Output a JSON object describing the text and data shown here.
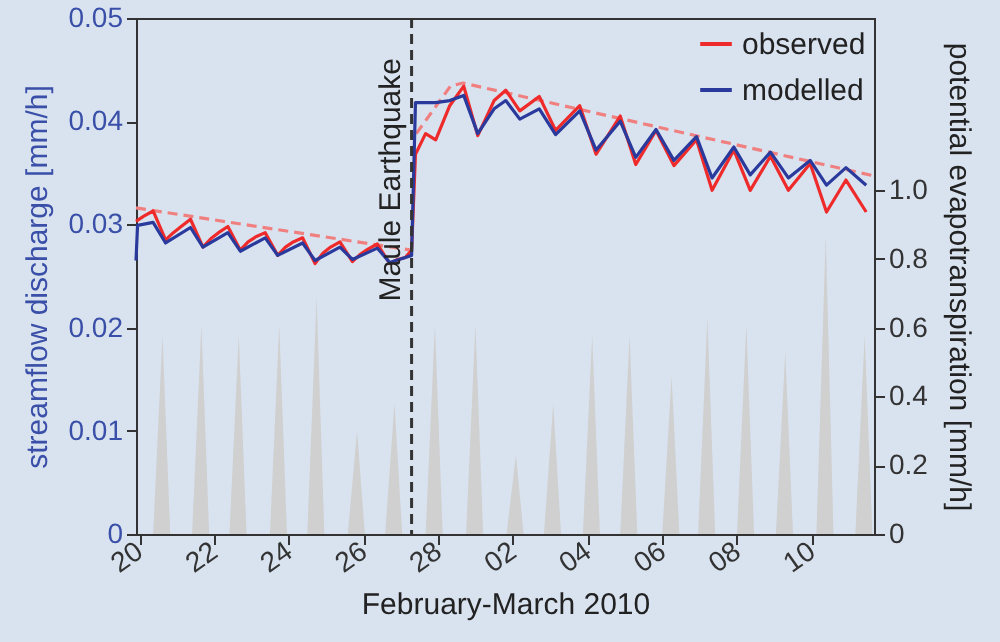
{
  "chart_data": {
    "type": "line",
    "xlabel": "February-March 2010",
    "ylabel": "streamflow discharge [mm/h]",
    "y2label": "potential evapotranspiration [mm/h]",
    "xlim": [
      "2010-02-19T22:00",
      "2010-03-11T16:00"
    ],
    "xticks": [
      {
        "value": "2010-02-20T00:00",
        "label": "20"
      },
      {
        "value": "2010-02-22T00:00",
        "label": "22"
      },
      {
        "value": "2010-02-24T00:00",
        "label": "24"
      },
      {
        "value": "2010-02-26T00:00",
        "label": "26"
      },
      {
        "value": "2010-02-28T00:00",
        "label": "28"
      },
      {
        "value": "2010-03-02T00:00",
        "label": "02"
      },
      {
        "value": "2010-03-04T00:00",
        "label": "04"
      },
      {
        "value": "2010-03-06T00:00",
        "label": "06"
      },
      {
        "value": "2010-03-08T00:00",
        "label": "08"
      },
      {
        "value": "2010-03-10T00:00",
        "label": "10"
      }
    ],
    "ylim": [
      0,
      0.05
    ],
    "yticks": [
      0,
      0.01,
      0.02,
      0.03,
      0.04,
      0.05
    ],
    "y2lim": [
      0,
      1.5
    ],
    "y2ticks": [
      0,
      0.2,
      0.4,
      0.6,
      0.8,
      {
        "value": 1,
        "label": "1.0"
      }
    ],
    "grid": false,
    "legend": "top right",
    "marker": "none",
    "ref_lines": [
      {
        "axis": "x",
        "value": "2010-02-27T07:00",
        "label": "Maule Earthquake",
        "color": "#333333",
        "line_style": "dashed"
      }
    ],
    "series": [
      {
        "type": "area",
        "axis": "y2",
        "color": "#d0d0d0",
        "x": [
          "2010-02-19T22:00",
          "2010-02-20T09:00",
          "2010-02-20T15:00",
          "2010-02-20T20:00",
          "2010-02-21T10:00",
          "2010-02-21T16:00",
          "2010-02-21T21:00",
          "2010-02-22T10:00",
          "2010-02-22T16:00",
          "2010-02-22T21:00",
          "2010-02-23T12:00",
          "2010-02-23T18:00",
          "2010-02-23T23:00",
          "2010-02-24T12:00",
          "2010-02-24T18:00",
          "2010-02-24T23:00",
          "2010-02-25T14:00",
          "2010-02-25T20:00",
          "2010-02-26T01:00",
          "2010-02-26T14:00",
          "2010-02-26T20:00",
          "2010-02-27T01:00",
          "2010-02-27T16:00",
          "2010-02-27T22:00",
          "2010-02-28T03:00",
          "2010-02-28T18:00",
          "2010-03-01T00:00",
          "2010-03-01T05:00",
          "2010-03-01T20:00",
          "2010-03-02T02:00",
          "2010-03-02T07:00",
          "2010-03-02T20:00",
          "2010-03-03T02:00",
          "2010-03-03T07:00",
          "2010-03-03T21:00",
          "2010-03-04T03:00",
          "2010-03-04T08:00",
          "2010-03-04T21:00",
          "2010-03-05T03:00",
          "2010-03-05T08:00",
          "2010-03-06T00:00",
          "2010-03-06T06:00",
          "2010-03-06T11:00",
          "2010-03-06T23:00",
          "2010-03-07T05:00",
          "2010-03-07T10:00",
          "2010-03-08T00:00",
          "2010-03-08T06:00",
          "2010-03-08T11:00",
          "2010-03-09T01:00",
          "2010-03-09T07:00",
          "2010-03-09T12:00",
          "2010-03-10T03:00",
          "2010-03-10T09:00",
          "2010-03-10T14:00",
          "2010-03-11T04:00",
          "2010-03-11T10:00",
          "2010-03-11T15:00"
        ],
        "values": [
          0,
          0,
          0.58,
          0,
          0,
          0.61,
          0,
          0,
          0.58,
          0,
          0,
          0.61,
          0,
          0,
          0.69,
          0,
          0,
          0.3,
          0,
          0,
          0.38,
          0,
          0,
          0.61,
          0,
          0,
          0.61,
          0,
          0,
          0.23,
          0,
          0,
          0.38,
          0,
          0,
          0.58,
          0,
          0,
          0.58,
          0,
          0,
          0.46,
          0,
          0,
          0.63,
          0,
          0,
          0.61,
          0,
          0,
          0.53,
          0,
          0,
          0.87,
          0,
          0,
          0.58,
          0
        ]
      },
      {
        "type": "line",
        "line_style": "dashed",
        "color": "#f08080",
        "x": [
          "2010-02-19T22:00",
          "2010-02-27T07:00"
        ],
        "values": [
          0.0316,
          0.0275
        ]
      },
      {
        "type": "line",
        "line_style": "dashed",
        "color": "#f08080",
        "x": [
          "2010-02-27T10:00",
          "2010-02-28T08:00",
          "2010-02-28T16:00",
          "2010-03-11T16:00"
        ],
        "values": [
          0.0388,
          0.0434,
          0.0437,
          0.0347
        ]
      },
      {
        "type": "line",
        "name": "observed",
        "color": "#ee2a2a",
        "x": [
          "2010-02-19T22:00",
          "2010-02-20T03:00",
          "2010-02-20T09:00",
          "2010-02-20T17:00",
          "2010-02-20T22:00",
          "2010-02-21T03:00",
          "2010-02-21T09:00",
          "2010-02-21T17:00",
          "2010-02-21T22:00",
          "2010-02-22T03:00",
          "2010-02-22T09:00",
          "2010-02-22T17:00",
          "2010-02-22T22:00",
          "2010-02-23T03:00",
          "2010-02-23T09:00",
          "2010-02-23T17:00",
          "2010-02-23T22:00",
          "2010-02-24T03:00",
          "2010-02-24T09:00",
          "2010-02-24T17:00",
          "2010-02-24T22:00",
          "2010-02-25T03:00",
          "2010-02-25T09:00",
          "2010-02-25T17:00",
          "2010-02-25T22:00",
          "2010-02-26T03:00",
          "2010-02-26T09:00",
          "2010-02-26T17:00",
          "2010-02-26T22:00",
          "2010-02-27T03:00",
          "2010-02-27T07:00",
          "2010-02-27T09:30",
          "2010-02-27T16:00",
          "2010-02-27T22:30",
          "2010-02-28T07:30",
          "2010-02-28T16:30",
          "2010-03-01T01:30",
          "2010-03-01T12:00",
          "2010-03-01T19:30",
          "2010-03-02T04:30",
          "2010-03-02T17:00",
          "2010-03-03T03:30",
          "2010-03-03T19:00",
          "2010-03-04T05:30",
          "2010-03-04T21:00",
          "2010-03-05T07:00",
          "2010-03-05T20:00",
          "2010-03-06T07:30",
          "2010-03-06T22:00",
          "2010-03-07T08:00",
          "2010-03-07T22:00",
          "2010-03-08T08:30",
          "2010-03-08T21:30",
          "2010-03-09T09:00",
          "2010-03-09T23:00",
          "2010-03-10T09:30",
          "2010-03-10T22:00",
          "2010-03-11T11:00"
        ],
        "values": [
          0.0303,
          0.0308,
          0.0313,
          0.0285,
          0.0292,
          0.0298,
          0.0305,
          0.0278,
          0.0286,
          0.0292,
          0.0298,
          0.0275,
          0.0283,
          0.0288,
          0.0292,
          0.027,
          0.0278,
          0.0283,
          0.0287,
          0.0262,
          0.0272,
          0.0278,
          0.0283,
          0.0264,
          0.0271,
          0.0276,
          0.0281,
          0.0262,
          0.0266,
          0.0268,
          0.0275,
          0.0368,
          0.0388,
          0.0382,
          0.0415,
          0.0434,
          0.0386,
          0.042,
          0.043,
          0.041,
          0.0424,
          0.0391,
          0.0415,
          0.0368,
          0.0405,
          0.0358,
          0.0391,
          0.0357,
          0.0382,
          0.0333,
          0.0372,
          0.0333,
          0.0366,
          0.0333,
          0.0359,
          0.0312,
          0.0343,
          0.0312
        ]
      },
      {
        "type": "line",
        "name": "modelled",
        "color": "#2a3a9c",
        "x": [
          "2010-02-19T22:00",
          "2010-02-19T23:00",
          "2010-02-20T09:00",
          "2010-02-20T17:00",
          "2010-02-21T09:00",
          "2010-02-21T17:00",
          "2010-02-22T09:00",
          "2010-02-22T17:00",
          "2010-02-23T09:00",
          "2010-02-23T17:00",
          "2010-02-24T09:00",
          "2010-02-24T17:00",
          "2010-02-25T09:00",
          "2010-02-25T17:00",
          "2010-02-26T09:00",
          "2010-02-26T17:00",
          "2010-02-27T03:00",
          "2010-02-27T07:00",
          "2010-02-27T09:30",
          "2010-02-27T22:30",
          "2010-02-28T07:30",
          "2010-02-28T16:30",
          "2010-03-01T01:30",
          "2010-03-01T12:00",
          "2010-03-01T19:30",
          "2010-03-02T04:30",
          "2010-03-02T17:00",
          "2010-03-03T03:30",
          "2010-03-03T19:00",
          "2010-03-04T05:30",
          "2010-03-04T21:00",
          "2010-03-05T07:00",
          "2010-03-05T20:00",
          "2010-03-06T07:30",
          "2010-03-06T22:00",
          "2010-03-07T08:00",
          "2010-03-07T22:00",
          "2010-03-08T08:30",
          "2010-03-08T21:30",
          "2010-03-09T09:00",
          "2010-03-09T23:00",
          "2010-03-10T09:30",
          "2010-03-10T22:00",
          "2010-03-11T11:00"
        ],
        "values": [
          0.0265,
          0.0299,
          0.0302,
          0.0282,
          0.0297,
          0.0278,
          0.0292,
          0.0274,
          0.0287,
          0.027,
          0.0282,
          0.0265,
          0.0278,
          0.0266,
          0.0277,
          0.0263,
          0.0268,
          0.027,
          0.0418,
          0.0418,
          0.042,
          0.0425,
          0.0388,
          0.0412,
          0.042,
          0.0402,
          0.0412,
          0.0387,
          0.041,
          0.0372,
          0.04,
          0.0365,
          0.0392,
          0.0362,
          0.0385,
          0.0345,
          0.0375,
          0.0348,
          0.037,
          0.0345,
          0.0362,
          0.0338,
          0.0355,
          0.0338
        ]
      }
    ]
  }
}
